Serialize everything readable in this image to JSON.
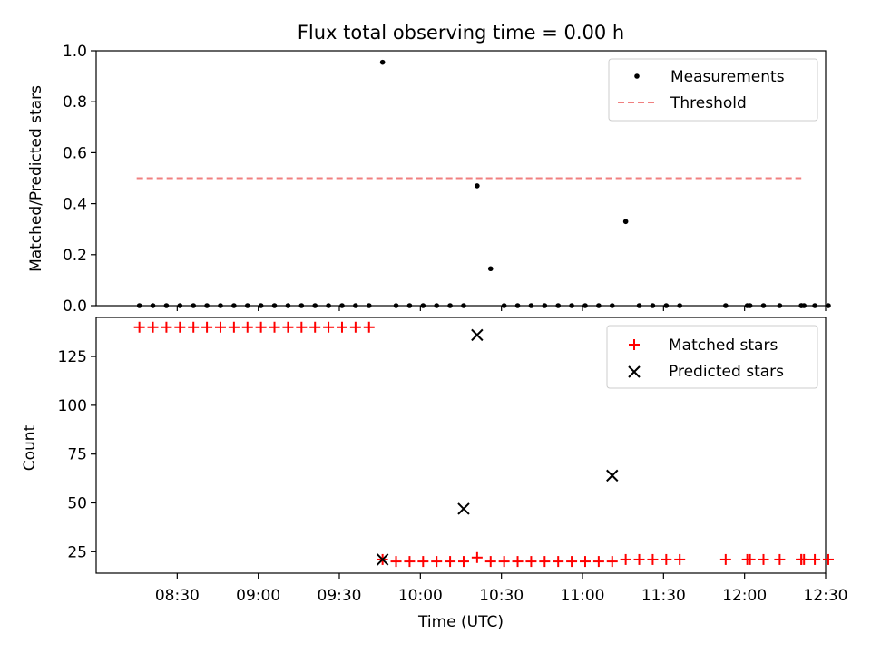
{
  "title": "Flux total observing time = 0.00 h",
  "chart_data": [
    {
      "type": "scatter",
      "ylabel": "Matched/Predicted stars",
      "ylim": [
        0,
        1.0
      ],
      "yticks": [
        0.0,
        0.2,
        0.4,
        0.6,
        0.8,
        1.0
      ],
      "ytick_labels": [
        "0.0",
        "0.2",
        "0.4",
        "0.6",
        "0.8",
        "1.0"
      ],
      "threshold": {
        "name": "Threshold",
        "value": 0.5,
        "x_start": 495,
        "x_end": 741,
        "color": "#f08080"
      },
      "legend": {
        "placement": "top-right",
        "entries": [
          "Measurements",
          "Threshold"
        ]
      },
      "series": [
        {
          "name": "Measurements",
          "color": "#000000",
          "marker": "dot",
          "x": [
            496,
            501,
            506,
            511,
            516,
            521,
            526,
            531,
            536,
            541,
            546,
            551,
            556,
            561,
            566,
            571,
            576,
            581,
            586,
            591,
            596,
            601,
            606,
            611,
            616,
            621,
            626,
            631,
            636,
            641,
            646,
            651,
            656,
            661,
            666,
            671,
            676,
            681,
            686,
            691,
            696,
            713,
            721,
            722,
            727,
            733,
            741,
            741,
            742,
            746,
            751
          ],
          "y": [
            0,
            0,
            0,
            0,
            0,
            0,
            0,
            0,
            0,
            0,
            0,
            0,
            0,
            0,
            0,
            0,
            0,
            0,
            0.955,
            0,
            0,
            0,
            0,
            0,
            0,
            0.47,
            0.145,
            0,
            0,
            0,
            0,
            0,
            0,
            0,
            0,
            0,
            0.33,
            0,
            0,
            0,
            0,
            0,
            0,
            0,
            0,
            0,
            0,
            0,
            0,
            0,
            0
          ]
        }
      ]
    },
    {
      "type": "scatter",
      "ylabel": "Count",
      "xlabel": "Time (UTC)",
      "ylim": [
        14,
        145
      ],
      "yticks": [
        25,
        50,
        75,
        100,
        125
      ],
      "ytick_labels": [
        "25",
        "50",
        "75",
        "100",
        "125"
      ],
      "xlim": [
        480,
        750
      ],
      "xticks": [
        510,
        540,
        570,
        600,
        630,
        660,
        690,
        720,
        750
      ],
      "xtick_labels": [
        "08:30",
        "09:00",
        "09:30",
        "10:00",
        "10:30",
        "11:00",
        "11:30",
        "12:00",
        "12:30"
      ],
      "legend": {
        "placement": "top-right",
        "entries": [
          "Matched stars",
          "Predicted stars"
        ]
      },
      "series": [
        {
          "name": "Matched stars",
          "color": "#ff0000",
          "marker": "plus",
          "x": [
            496,
            501,
            506,
            511,
            516,
            521,
            526,
            531,
            536,
            541,
            546,
            551,
            556,
            561,
            566,
            571,
            576,
            581,
            586,
            591,
            596,
            601,
            606,
            611,
            616,
            621,
            626,
            631,
            636,
            641,
            646,
            651,
            656,
            661,
            666,
            671,
            676,
            681,
            686,
            691,
            696,
            713,
            721,
            722,
            727,
            733,
            741,
            741,
            742,
            746,
            751
          ],
          "y": [
            140,
            140,
            140,
            140,
            140,
            140,
            140,
            140,
            140,
            140,
            140,
            140,
            140,
            140,
            140,
            140,
            140,
            140,
            21,
            20,
            20,
            20,
            20,
            20,
            20,
            22,
            20,
            20,
            20,
            20,
            20,
            20,
            20,
            20,
            20,
            20,
            21,
            21,
            21,
            21,
            21,
            21,
            21,
            21,
            21,
            21,
            21,
            21,
            21,
            21,
            21
          ]
        },
        {
          "name": "Predicted stars",
          "color": "#000000",
          "marker": "x",
          "x": [
            586,
            616,
            621,
            671
          ],
          "y": [
            21,
            47,
            136,
            64
          ]
        }
      ]
    }
  ]
}
